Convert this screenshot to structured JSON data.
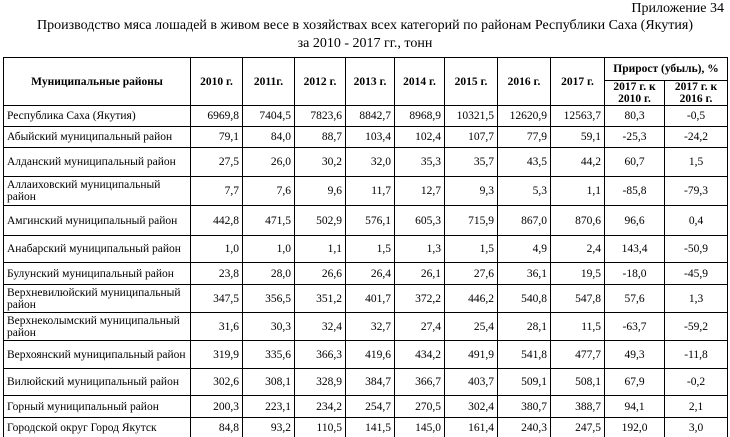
{
  "header": {
    "appendix": "Приложение  34",
    "title": [
      "Производство мяса лошадей в живом весе в хозяйствах всех категорий по районам Республики Саха (Якутия)",
      "за 2010 - 2017 гг., тонн"
    ]
  },
  "table": {
    "columns": {
      "name": "Муниципальные районы",
      "years": [
        "2010 г.",
        "2011г.",
        "2012 г.",
        "2013 г.",
        "2014 г.",
        "2015 г.",
        "2016 г.",
        "2017 г."
      ],
      "growth": "Прирост (убыль), %",
      "growth_sub": [
        "2017 г. к 2010 г.",
        "2017 г. к 2016 г."
      ]
    },
    "rows": [
      [
        "Республика Саха (Якутия)",
        "6969,8",
        "7404,5",
        "7823,6",
        "8842,7",
        "8968,9",
        "10321,5",
        "12620,9",
        "12563,7",
        "80,3",
        "-0,5"
      ],
      [
        "Абыйский муниципальный район",
        "79,1",
        "84,0",
        "88,7",
        "103,4",
        "102,4",
        "107,7",
        "77,9",
        "59,1",
        "-25,3",
        "-24,2"
      ],
      [
        "Алданский муниципальный район",
        "27,5",
        "26,0",
        "30,2",
        "32,0",
        "35,3",
        "35,7",
        "43,5",
        "44,2",
        "60,7",
        "1,5"
      ],
      [
        "Аллаиховский муниципальный район",
        "7,7",
        "7,6",
        "9,6",
        "11,7",
        "12,7",
        "9,3",
        "5,3",
        "1,1",
        "-85,8",
        "-79,3"
      ],
      [
        "Амгинский муниципальный район",
        "442,8",
        "471,5",
        "502,9",
        "576,1",
        "605,3",
        "715,9",
        "867,0",
        "870,6",
        "96,6",
        "0,4"
      ],
      [
        "Анабарский муниципальный район",
        "1,0",
        "1,0",
        "1,1",
        "1,5",
        "1,3",
        "1,5",
        "4,9",
        "2,4",
        "143,4",
        "-50,9"
      ],
      [
        "Булунский муниципальный район",
        "23,8",
        "28,0",
        "26,6",
        "26,4",
        "26,1",
        "27,6",
        "36,1",
        "19,5",
        "-18,0",
        "-45,9"
      ],
      [
        "Верхневилюйский муниципальный район",
        "347,5",
        "356,5",
        "351,2",
        "401,7",
        "372,2",
        "446,2",
        "540,8",
        "547,8",
        "57,6",
        "1,3"
      ],
      [
        "Верхнеколымский муниципальный район",
        "31,6",
        "30,3",
        "32,4",
        "32,7",
        "27,4",
        "25,4",
        "28,1",
        "11,5",
        "-63,7",
        "-59,2"
      ],
      [
        "Верхоянский муниципальный район",
        "319,9",
        "335,6",
        "366,3",
        "419,6",
        "434,2",
        "491,9",
        "541,8",
        "477,7",
        "49,3",
        "-11,8"
      ],
      [
        "Вилюйский муниципальный район",
        "302,6",
        "308,1",
        "328,9",
        "384,7",
        "366,7",
        "403,7",
        "509,1",
        "508,1",
        "67,9",
        "-0,2"
      ],
      [
        "Горный муниципальный район",
        "200,3",
        "223,1",
        "234,2",
        "254,7",
        "270,5",
        "302,4",
        "380,7",
        "388,7",
        "94,1",
        "2,1"
      ],
      [
        "Городской округ Город Якутск",
        "84,8",
        "93,2",
        "110,5",
        "141,5",
        "145,0",
        "161,4",
        "240,3",
        "247,5",
        "192,0",
        "3,0"
      ]
    ]
  }
}
